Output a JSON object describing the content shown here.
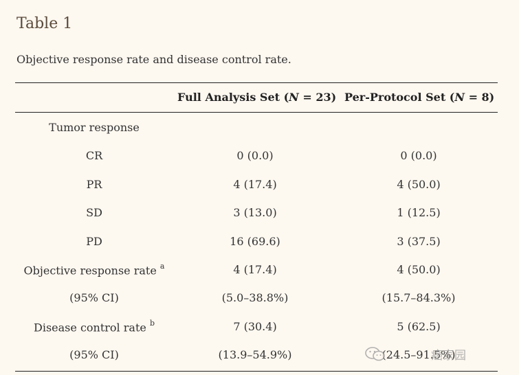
{
  "title": "Table 1",
  "caption": "Objective response rate and disease control rate.",
  "columns": {
    "fas": {
      "prefix": "Full Analysis Set (",
      "var": "N",
      "suffix": " = 23)"
    },
    "pps": {
      "prefix": "Per-Protocol Set (",
      "var": "N",
      "suffix": " = 8)"
    }
  },
  "rows": [
    {
      "label": "Tumor response",
      "sup": "",
      "fas": "",
      "pps": ""
    },
    {
      "label": "CR",
      "sup": "",
      "fas": "0 (0.0)",
      "pps": "0 (0.0)"
    },
    {
      "label": "PR",
      "sup": "",
      "fas": "4 (17.4)",
      "pps": "4 (50.0)"
    },
    {
      "label": "SD",
      "sup": "",
      "fas": "3 (13.0)",
      "pps": "1 (12.5)"
    },
    {
      "label": "PD",
      "sup": "",
      "fas": "16 (69.6)",
      "pps": "3 (37.5)"
    },
    {
      "label": "Objective response rate",
      "sup": "a",
      "fas": "4 (17.4)",
      "pps": "4 (50.0)"
    },
    {
      "label": "(95% CI)",
      "sup": "",
      "fas": "(5.0–38.8%)",
      "pps": "(15.7–84.3%)"
    },
    {
      "label": "Disease control rate",
      "sup": "b",
      "fas": "7 (30.4)",
      "pps": "5 (62.5)"
    },
    {
      "label": "(95% CI)",
      "sup": "",
      "fas": "(13.9–54.9%)",
      "pps": "(24.5–91.5%)"
    }
  ],
  "watermark": {
    "text": "癌家园",
    "icon": "wechat-icon"
  }
}
